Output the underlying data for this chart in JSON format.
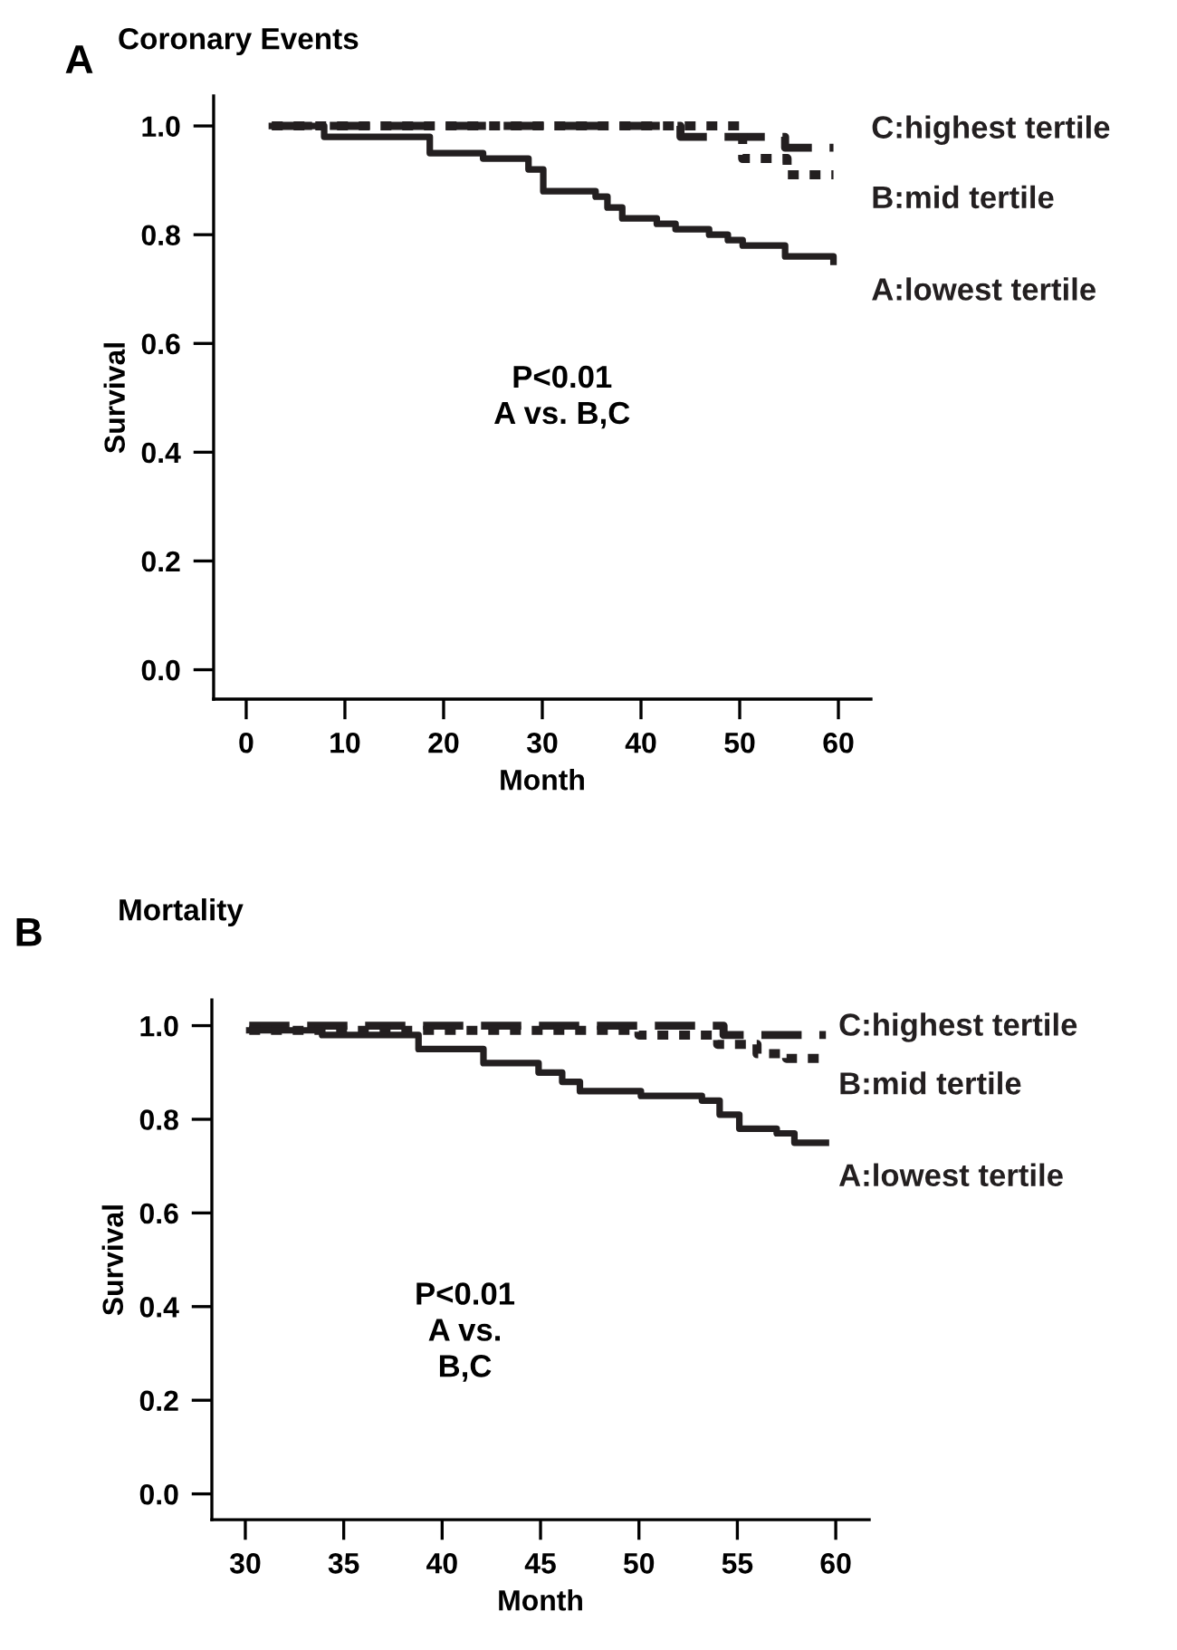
{
  "chart_data": [
    {
      "type": "step",
      "title": "Coronary Events",
      "xlabel": "Month",
      "ylabel": "Survival",
      "annotations": [
        "A",
        "P<0.01\nA vs. B,C"
      ],
      "xlim": [
        -3.3,
        63.3
      ],
      "xticks": [
        0,
        10,
        20,
        30,
        40,
        50,
        60
      ],
      "ylim": [
        -0.054,
        1.055
      ],
      "yticks": [
        {
          "value": 0,
          "label": "0.0"
        },
        {
          "value": 0.2,
          "label": "0.2"
        },
        {
          "value": 0.4,
          "label": "0.4"
        },
        {
          "value": 0.6,
          "label": "0.6"
        },
        {
          "value": 0.8,
          "label": "0.8"
        },
        {
          "value": 1,
          "label": "1.0"
        }
      ],
      "legend": false,
      "grid": false,
      "marker": "none",
      "series": [
        {
          "name": "C:highest tertile",
          "color": "#231f20",
          "line_style": "dashed",
          "x": [
            2.6,
            44.0,
            54.6,
            59.5
          ],
          "values": [
            1.0,
            0.98,
            0.96,
            0.96
          ]
        },
        {
          "name": "B:mid tertile",
          "color": "#231f20",
          "line_style": "dotted",
          "x": [
            2.6,
            50.3,
            54.8,
            59.5
          ],
          "values": [
            1.0,
            0.94,
            0.91,
            0.91
          ]
        },
        {
          "name": "A:lowest tertile",
          "color": "#231f20",
          "line_style": "solid",
          "x": [
            2.6,
            7.9,
            18.6,
            24.0,
            28.6,
            30.1,
            35.4,
            36.6,
            38.1,
            41.6,
            43.5,
            46.9,
            48.8,
            50.3,
            54.6,
            59.5
          ],
          "values": [
            1.0,
            0.98,
            0.95,
            0.94,
            0.92,
            0.88,
            0.87,
            0.85,
            0.83,
            0.82,
            0.81,
            0.8,
            0.79,
            0.78,
            0.76,
            0.75
          ]
        }
      ]
    },
    {
      "type": "step",
      "title": "Mortality",
      "xlabel": "Month",
      "ylabel": "Survival",
      "annotations": [
        "B",
        "P<0.01\nA vs.\nB,C"
      ],
      "xlim": [
        28.3,
        61.7
      ],
      "xticks": [
        30,
        35,
        40,
        45,
        50,
        55,
        60
      ],
      "ylim": [
        -0.055,
        1.055
      ],
      "yticks": [
        {
          "value": 0,
          "label": "0.0"
        },
        {
          "value": 0.2,
          "label": "0.2"
        },
        {
          "value": 0.4,
          "label": "0.4"
        },
        {
          "value": 0.6,
          "label": "0.6"
        },
        {
          "value": 0.8,
          "label": "0.8"
        },
        {
          "value": 1,
          "label": "1.0"
        }
      ],
      "legend": false,
      "grid": false,
      "marker": "none",
      "series": [
        {
          "name": "C:highest tertile",
          "color": "#231f20",
          "line_style": "dashed",
          "x": [
            30.2,
            54.3,
            59.5
          ],
          "values": [
            1.0,
            0.98,
            0.98
          ]
        },
        {
          "name": "B:mid tertile",
          "color": "#231f20",
          "line_style": "dotted",
          "x": [
            30.2,
            50.0,
            54.0,
            56.0,
            57.5,
            59.5
          ],
          "values": [
            0.99,
            0.98,
            0.96,
            0.94,
            0.93,
            0.93
          ]
        },
        {
          "name": "A:lowest tertile",
          "color": "#231f20",
          "line_style": "solid",
          "x": [
            30.2,
            33.9,
            38.8,
            42.1,
            44.9,
            46.1,
            47.0,
            50.1,
            53.2,
            54.1,
            55.1,
            57.0,
            57.9,
            59.5
          ],
          "values": [
            0.99,
            0.98,
            0.95,
            0.92,
            0.9,
            0.88,
            0.86,
            0.85,
            0.84,
            0.81,
            0.78,
            0.77,
            0.75,
            0.75
          ]
        }
      ]
    }
  ]
}
